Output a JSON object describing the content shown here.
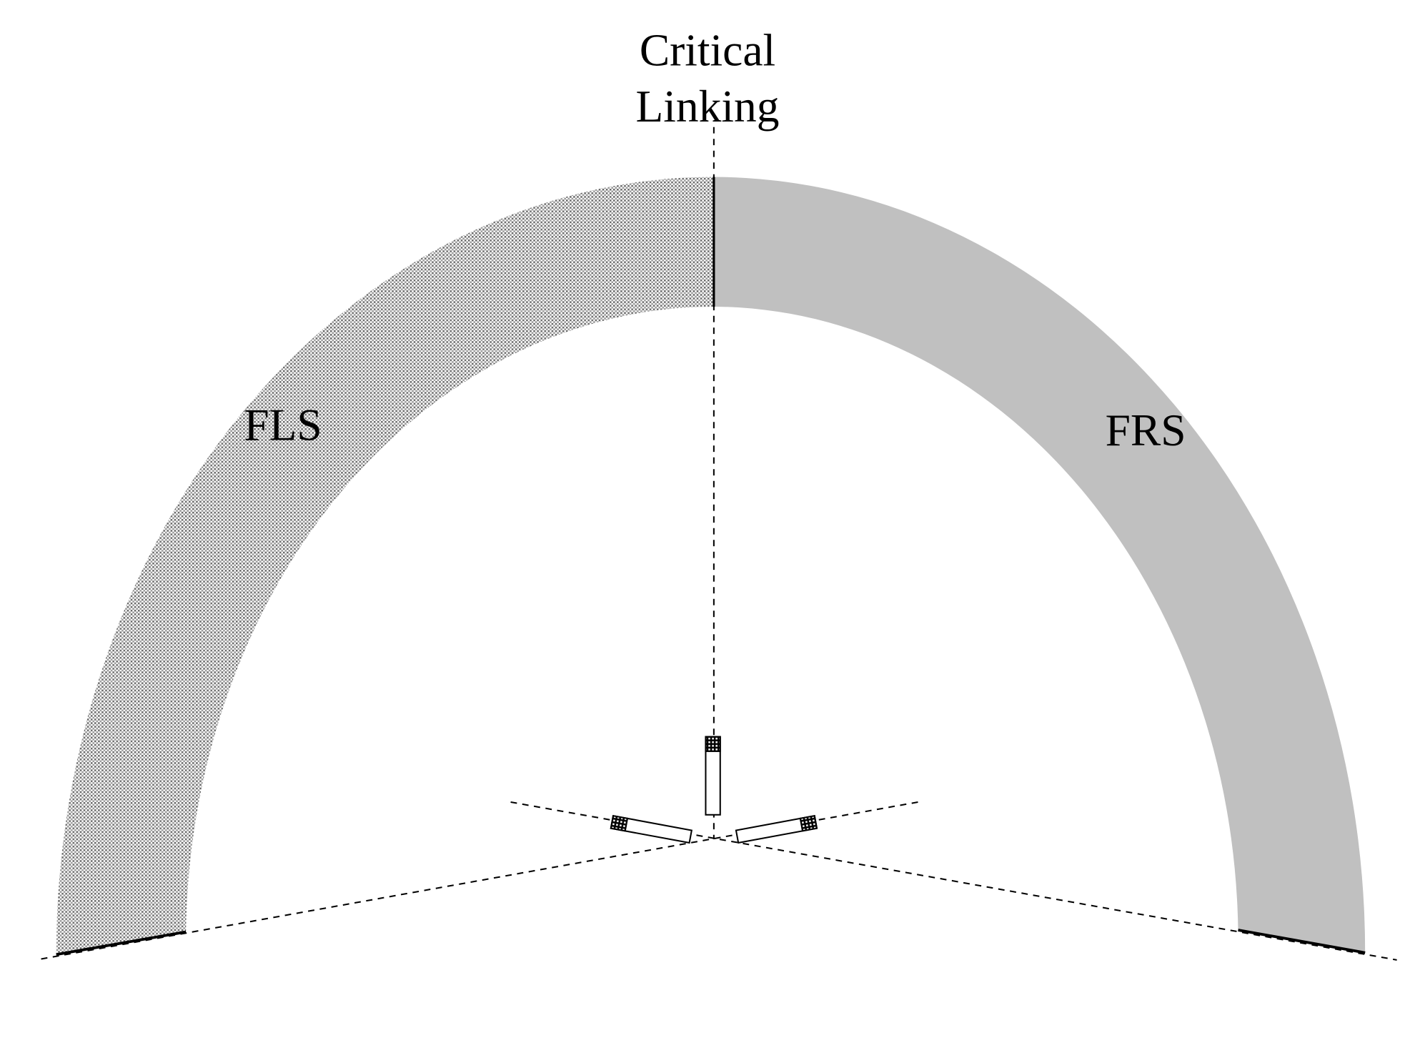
{
  "labels": {
    "critical_line1": "Critical",
    "critical_line2": "Linking",
    "left_region": "FLS",
    "right_region": "FRS"
  },
  "colors": {
    "left_region_fill": "dotted-gray",
    "right_region_fill": "#c0c0c0",
    "lines": "#000000"
  }
}
